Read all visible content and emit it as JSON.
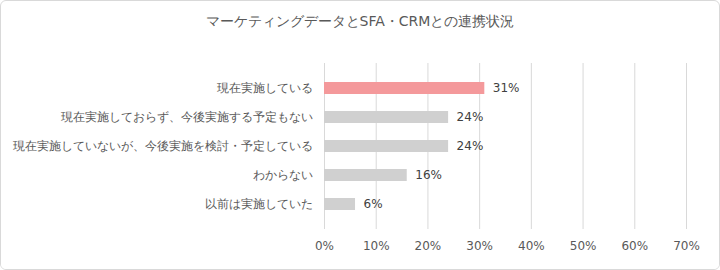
{
  "chart_data": {
    "type": "bar",
    "orientation": "horizontal",
    "title": "マーケティングデータとSFA・CRMとの連携状況",
    "categories": [
      "現在実施している",
      "現在実施しておらず、今後実施する予定もない",
      "現在実施していないが、今後実施を検討・予定している",
      "わからない",
      "以前は実施していた"
    ],
    "values": [
      31,
      24,
      24,
      16,
      6
    ],
    "value_labels": [
      "31%",
      "24%",
      "24%",
      "16%",
      "6%"
    ],
    "colors": [
      "#f4999b",
      "#d0d0d0",
      "#d0d0d0",
      "#d0d0d0",
      "#d0d0d0"
    ],
    "xlim": [
      0,
      70
    ],
    "xticks": [
      {
        "value": 0,
        "label": "0%"
      },
      {
        "value": 10,
        "label": "10%"
      },
      {
        "value": 20,
        "label": "20%"
      },
      {
        "value": 30,
        "label": "30%"
      },
      {
        "value": 40,
        "label": "40%"
      },
      {
        "value": 50,
        "label": "50%"
      },
      {
        "value": 60,
        "label": "60%"
      },
      {
        "value": 70,
        "label": "70%"
      }
    ],
    "grid": true,
    "data_labels": true
  }
}
